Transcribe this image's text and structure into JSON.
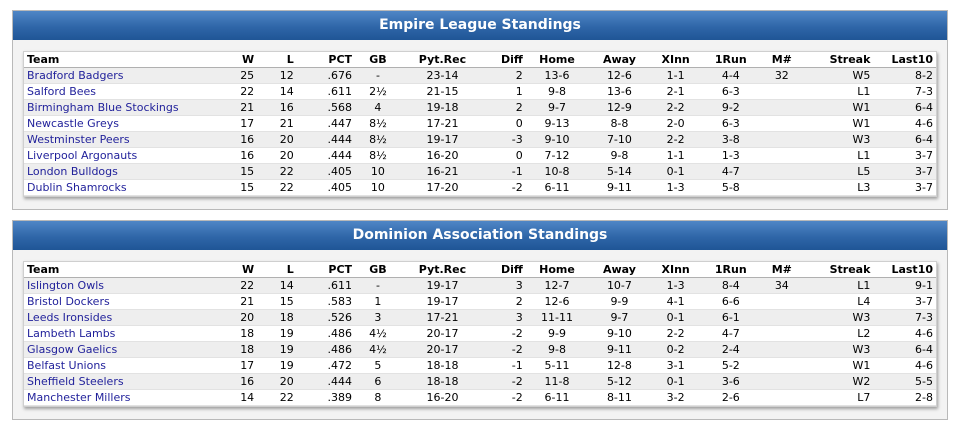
{
  "columns": [
    "Team",
    "W",
    "L",
    "PCT",
    "GB",
    "Pyt.Rec",
    "Diff",
    "Home",
    "Away",
    "XInn",
    "1Run",
    "M#",
    "Streak",
    "Last10"
  ],
  "empire": {
    "title": "Empire League Standings",
    "rows": [
      [
        "Bradford Badgers",
        "25",
        "12",
        ".676",
        "-",
        "23-14",
        "2",
        "13-6",
        "12-6",
        "1-1",
        "4-4",
        "32",
        "W5",
        "8-2"
      ],
      [
        "Salford Bees",
        "22",
        "14",
        ".611",
        "2½",
        "21-15",
        "1",
        "9-8",
        "13-6",
        "2-1",
        "6-3",
        "",
        "L1",
        "7-3"
      ],
      [
        "Birmingham Blue Stockings",
        "21",
        "16",
        ".568",
        "4",
        "19-18",
        "2",
        "9-7",
        "12-9",
        "2-2",
        "9-2",
        "",
        "W1",
        "6-4"
      ],
      [
        "Newcastle Greys",
        "17",
        "21",
        ".447",
        "8½",
        "17-21",
        "0",
        "9-13",
        "8-8",
        "2-0",
        "6-3",
        "",
        "W1",
        "4-6"
      ],
      [
        "Westminster Peers",
        "16",
        "20",
        ".444",
        "8½",
        "19-17",
        "-3",
        "9-10",
        "7-10",
        "2-2",
        "3-8",
        "",
        "W3",
        "6-4"
      ],
      [
        "Liverpool Argonauts",
        "16",
        "20",
        ".444",
        "8½",
        "16-20",
        "0",
        "7-12",
        "9-8",
        "1-1",
        "1-3",
        "",
        "L1",
        "3-7"
      ],
      [
        "London Bulldogs",
        "15",
        "22",
        ".405",
        "10",
        "16-21",
        "-1",
        "10-8",
        "5-14",
        "0-1",
        "4-7",
        "",
        "L5",
        "3-7"
      ],
      [
        "Dublin Shamrocks",
        "15",
        "22",
        ".405",
        "10",
        "17-20",
        "-2",
        "6-11",
        "9-11",
        "1-3",
        "5-8",
        "",
        "L3",
        "3-7"
      ]
    ]
  },
  "dominion": {
    "title": "Dominion Association Standings",
    "rows": [
      [
        "Islington Owls",
        "22",
        "14",
        ".611",
        "-",
        "19-17",
        "3",
        "12-7",
        "10-7",
        "1-3",
        "8-4",
        "34",
        "L1",
        "9-1"
      ],
      [
        "Bristol Dockers",
        "21",
        "15",
        ".583",
        "1",
        "19-17",
        "2",
        "12-6",
        "9-9",
        "4-1",
        "6-6",
        "",
        "L4",
        "3-7"
      ],
      [
        "Leeds Ironsides",
        "20",
        "18",
        ".526",
        "3",
        "17-21",
        "3",
        "11-11",
        "9-7",
        "0-1",
        "6-1",
        "",
        "W3",
        "7-3"
      ],
      [
        "Lambeth Lambs",
        "18",
        "19",
        ".486",
        "4½",
        "20-17",
        "-2",
        "9-9",
        "9-10",
        "2-2",
        "4-7",
        "",
        "L2",
        "4-6"
      ],
      [
        "Glasgow Gaelics",
        "18",
        "19",
        ".486",
        "4½",
        "20-17",
        "-2",
        "9-8",
        "9-11",
        "0-2",
        "2-4",
        "",
        "W3",
        "6-4"
      ],
      [
        "Belfast Unions",
        "17",
        "19",
        ".472",
        "5",
        "18-18",
        "-1",
        "5-11",
        "12-8",
        "3-1",
        "5-2",
        "",
        "W1",
        "4-6"
      ],
      [
        "Sheffield Steelers",
        "16",
        "20",
        ".444",
        "6",
        "18-18",
        "-2",
        "11-8",
        "5-12",
        "0-1",
        "3-6",
        "",
        "W2",
        "5-5"
      ],
      [
        "Manchester Millers",
        "14",
        "22",
        ".389",
        "8",
        "16-20",
        "-2",
        "6-11",
        "8-11",
        "3-2",
        "2-6",
        "",
        "L7",
        "2-8"
      ]
    ]
  }
}
